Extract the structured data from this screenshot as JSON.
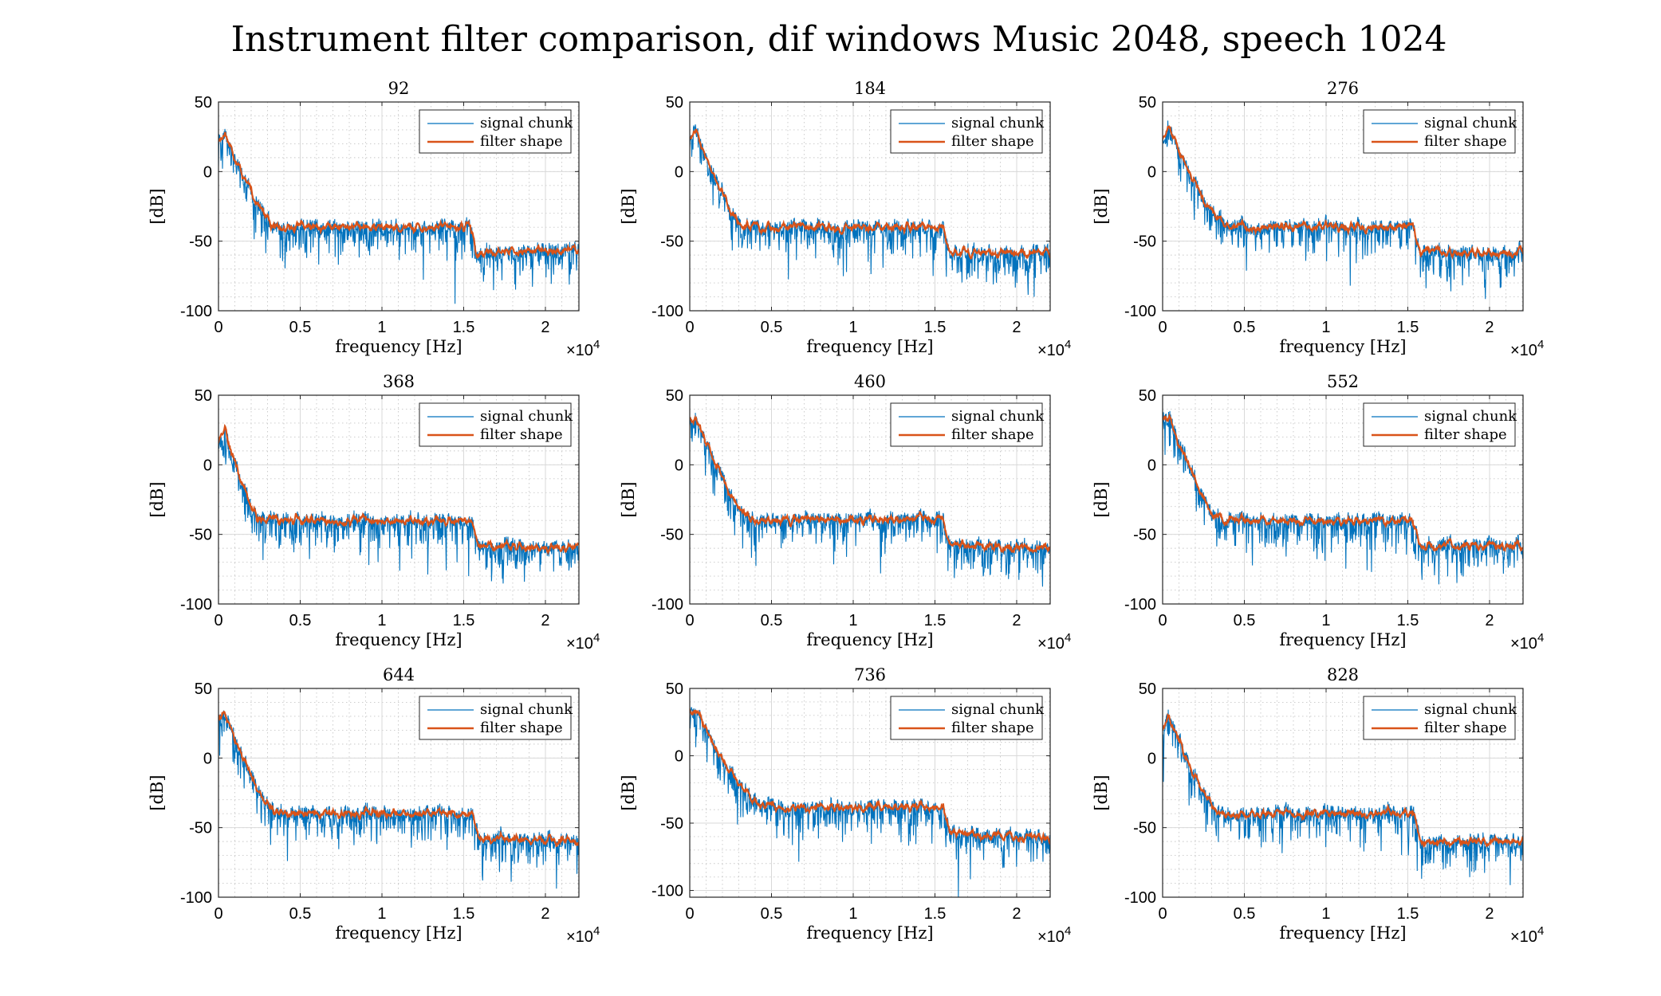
{
  "figure": {
    "title": "Instrument filter comparison, dif windows Music 2048, speech 1024"
  },
  "chart_data": [
    {
      "type": "line",
      "title": "92",
      "xlabel": "frequency [Hz]",
      "ylabel": "[dB]",
      "xlim": [
        0,
        22050
      ],
      "ylim": [
        -100,
        50
      ],
      "x_exponent": "4",
      "x_ticks": [
        "0",
        "0.5",
        "1",
        "1.5",
        "2"
      ],
      "y_ticks": [
        "50",
        "0",
        "-50",
        "-100"
      ],
      "legend": "top-right",
      "grid": true,
      "series": [
        {
          "name": "signal chunk",
          "color": "#0072BD"
        },
        {
          "name": "filter shape",
          "color": "#D95319"
        }
      ],
      "profile": {
        "start": 22,
        "peak": 28,
        "knee_end_khz": 3.6,
        "mid_level": -40,
        "step_khz": 15.4,
        "tail_level": -58,
        "tail_end": -56,
        "min_dip": -95
      }
    },
    {
      "type": "line",
      "title": "184",
      "xlabel": "frequency [Hz]",
      "ylabel": "[dB]",
      "xlim": [
        0,
        22050
      ],
      "ylim": [
        -100,
        50
      ],
      "x_exponent": "4",
      "x_ticks": [
        "0",
        "0.5",
        "1",
        "1.5",
        "2"
      ],
      "y_ticks": [
        "50",
        "0",
        "-50",
        "-100"
      ],
      "legend": "top-right",
      "grid": true,
      "series": [
        {
          "name": "signal chunk",
          "color": "#0072BD"
        },
        {
          "name": "filter shape",
          "color": "#D95319"
        }
      ],
      "profile": {
        "start": 25,
        "peak": 30,
        "knee_end_khz": 3.4,
        "mid_level": -40,
        "step_khz": 15.5,
        "tail_level": -58,
        "tail_end": -58,
        "min_dip": -75
      }
    },
    {
      "type": "line",
      "title": "276",
      "xlabel": "frequency [Hz]",
      "ylabel": "[dB]",
      "xlim": [
        0,
        22050
      ],
      "ylim": [
        -100,
        50
      ],
      "x_exponent": "4",
      "x_ticks": [
        "0",
        "0.5",
        "1",
        "1.5",
        "2"
      ],
      "y_ticks": [
        "50",
        "0",
        "-50",
        "-100"
      ],
      "legend": "top-right",
      "grid": true,
      "series": [
        {
          "name": "signal chunk",
          "color": "#0072BD"
        },
        {
          "name": "filter shape",
          "color": "#D95319"
        }
      ],
      "profile": {
        "start": 24,
        "peak": 32,
        "knee_end_khz": 4.0,
        "mid_level": -40,
        "step_khz": 15.4,
        "tail_level": -58,
        "tail_end": -58,
        "min_dip": -82
      }
    },
    {
      "type": "line",
      "title": "368",
      "xlabel": "frequency [Hz]",
      "ylabel": "[dB]",
      "xlim": [
        0,
        22050
      ],
      "ylim": [
        -100,
        50
      ],
      "x_exponent": "4",
      "x_ticks": [
        "0",
        "0.5",
        "1",
        "1.5",
        "2"
      ],
      "y_ticks": [
        "50",
        "0",
        "-50",
        "-100"
      ],
      "legend": "top-right",
      "grid": true,
      "series": [
        {
          "name": "signal chunk",
          "color": "#0072BD"
        },
        {
          "name": "filter shape",
          "color": "#D95319"
        }
      ],
      "profile": {
        "start": 16,
        "peak": 26,
        "knee_end_khz": 2.6,
        "mid_level": -40,
        "step_khz": 15.5,
        "tail_level": -58,
        "tail_end": -60,
        "min_dip": -80
      }
    },
    {
      "type": "line",
      "title": "460",
      "xlabel": "frequency [Hz]",
      "ylabel": "[dB]",
      "xlim": [
        0,
        22050
      ],
      "ylim": [
        -100,
        50
      ],
      "x_exponent": "4",
      "x_ticks": [
        "0",
        "0.5",
        "1",
        "1.5",
        "2"
      ],
      "y_ticks": [
        "50",
        "0",
        "-50",
        "-100"
      ],
      "legend": "top-right",
      "grid": true,
      "series": [
        {
          "name": "signal chunk",
          "color": "#0072BD"
        },
        {
          "name": "filter shape",
          "color": "#D95319"
        }
      ],
      "profile": {
        "start": 30,
        "peak": 34,
        "knee_end_khz": 3.8,
        "mid_level": -39,
        "step_khz": 15.5,
        "tail_level": -58,
        "tail_end": -60,
        "min_dip": -78
      }
    },
    {
      "type": "line",
      "title": "552",
      "xlabel": "frequency [Hz]",
      "ylabel": "[dB]",
      "xlim": [
        0,
        22050
      ],
      "ylim": [
        -100,
        50
      ],
      "x_exponent": "4",
      "x_ticks": [
        "0",
        "0.5",
        "1",
        "1.5",
        "2"
      ],
      "y_ticks": [
        "50",
        "0",
        "-50",
        "-100"
      ],
      "legend": "top-right",
      "grid": true,
      "series": [
        {
          "name": "signal chunk",
          "color": "#0072BD"
        },
        {
          "name": "filter shape",
          "color": "#D95319"
        }
      ],
      "profile": {
        "start": 32,
        "peak": 34,
        "knee_end_khz": 3.6,
        "mid_level": -40,
        "step_khz": 15.3,
        "tail_level": -58,
        "tail_end": -58,
        "min_dip": -77
      }
    },
    {
      "type": "line",
      "title": "644",
      "xlabel": "frequency [Hz]",
      "ylabel": "[dB]",
      "xlim": [
        0,
        22050
      ],
      "ylim": [
        -100,
        50
      ],
      "x_exponent": "4",
      "x_ticks": [
        "0",
        "0.5",
        "1",
        "1.5",
        "2"
      ],
      "y_ticks": [
        "50",
        "0",
        "-50",
        "-100"
      ],
      "legend": "top-right",
      "grid": true,
      "series": [
        {
          "name": "signal chunk",
          "color": "#0072BD"
        },
        {
          "name": "filter shape",
          "color": "#D95319"
        }
      ],
      "profile": {
        "start": 30,
        "peak": 32,
        "knee_end_khz": 3.6,
        "mid_level": -40,
        "step_khz": 15.5,
        "tail_level": -58,
        "tail_end": -60,
        "min_dip": -88
      }
    },
    {
      "type": "line",
      "title": "736",
      "xlabel": "frequency [Hz]",
      "ylabel": "[dB]",
      "xlim": [
        0,
        22050
      ],
      "ylim": [
        -105,
        50
      ],
      "x_exponent": "4",
      "x_ticks": [
        "0",
        "0.5",
        "1",
        "1.5",
        "2"
      ],
      "y_ticks": [
        "50",
        "0",
        "-50",
        "-100"
      ],
      "legend": "top-right",
      "grid": true,
      "series": [
        {
          "name": "signal chunk",
          "color": "#0072BD"
        },
        {
          "name": "filter shape",
          "color": "#D95319"
        }
      ],
      "profile": {
        "start": 30,
        "peak": 34,
        "knee_end_khz": 4.4,
        "mid_level": -38,
        "step_khz": 15.5,
        "tail_level": -57,
        "tail_end": -62,
        "min_dip": -105
      }
    },
    {
      "type": "line",
      "title": "828",
      "xlabel": "frequency [Hz]",
      "ylabel": "[dB]",
      "xlim": [
        0,
        22050
      ],
      "ylim": [
        -100,
        50
      ],
      "x_exponent": "4",
      "x_ticks": [
        "0",
        "0.5",
        "1",
        "1.5",
        "2"
      ],
      "y_ticks": [
        "50",
        "0",
        "-50",
        "-100"
      ],
      "legend": "top-right",
      "grid": true,
      "series": [
        {
          "name": "signal chunk",
          "color": "#0072BD"
        },
        {
          "name": "filter shape",
          "color": "#D95319"
        }
      ],
      "profile": {
        "start": 22,
        "peak": 30,
        "knee_end_khz": 3.6,
        "mid_level": -40,
        "step_khz": 15.4,
        "tail_level": -60,
        "tail_end": -60,
        "min_dip": -80
      }
    }
  ]
}
